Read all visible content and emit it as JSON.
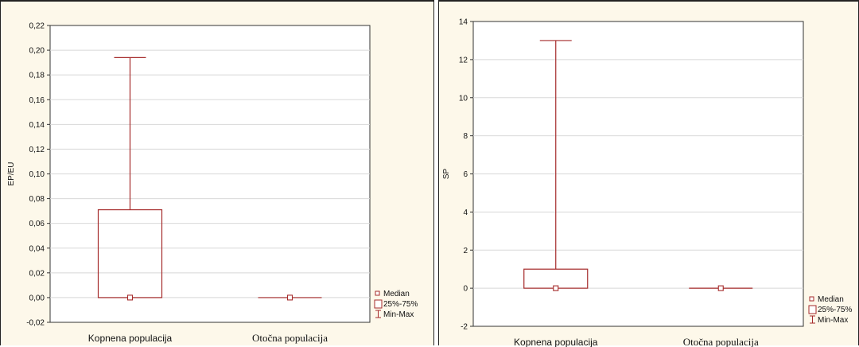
{
  "chart_data": [
    {
      "type": "box",
      "ylabel": "EP/EU",
      "ylim": [
        -0.02,
        0.22
      ],
      "yticks": [
        "-0,02",
        "0,00",
        "0,02",
        "0,04",
        "0,06",
        "0,08",
        "0,10",
        "0,12",
        "0,14",
        "0,16",
        "0,18",
        "0,20",
        "0,22"
      ],
      "ytick_values": [
        -0.02,
        0,
        0.02,
        0.04,
        0.06,
        0.08,
        0.1,
        0.12,
        0.14,
        0.16,
        0.18,
        0.2,
        0.22
      ],
      "categories": [
        "Kopnena populacija",
        "Otočna populacija"
      ],
      "series": [
        {
          "category": "Kopnena populacija",
          "median": 0,
          "q1": 0,
          "q3": 0.071,
          "min": 0,
          "max": 0.194
        },
        {
          "category": "Otočna populacija",
          "median": 0,
          "q1": 0,
          "q3": 0,
          "min": 0,
          "max": 0
        }
      ],
      "legend": [
        "Median",
        "25%-75%",
        "Min-Max"
      ],
      "legend_position": "bottom-right",
      "grid": true,
      "color": "#a52a2a"
    },
    {
      "type": "box",
      "ylabel": "SP",
      "ylim": [
        -2,
        14
      ],
      "yticks": [
        "-2",
        "0",
        "2",
        "4",
        "6",
        "8",
        "10",
        "12",
        "14"
      ],
      "ytick_values": [
        -2,
        0,
        2,
        4,
        6,
        8,
        10,
        12,
        14
      ],
      "categories": [
        "Kopnena populacija",
        "Otočna populacija"
      ],
      "series": [
        {
          "category": "Kopnena populacija",
          "median": 0,
          "q1": 0,
          "q3": 1,
          "min": 0,
          "max": 13
        },
        {
          "category": "Otočna populacija",
          "median": 0,
          "q1": 0,
          "q3": 0,
          "min": 0,
          "max": 0
        }
      ],
      "legend": [
        "Median",
        "25%-75%",
        "Min-Max"
      ],
      "legend_position": "bottom-right",
      "grid": true,
      "color": "#a52a2a"
    }
  ]
}
